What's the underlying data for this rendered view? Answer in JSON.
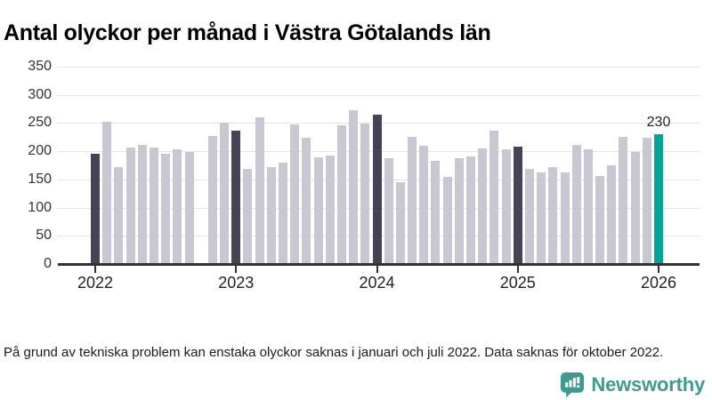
{
  "header": {
    "title": "Antal olyckor per månad i Västra Götalands län"
  },
  "footnote": "På grund av tekniska problem kan enstaka olyckor saknas i januari och juli 2022. Data saknas för oktober 2022.",
  "logo": {
    "text": "Newsworthy",
    "icon": "newsworthy-bubble-chart-icon",
    "color": "#3f9b8f"
  },
  "colors": {
    "bar_default": "#c9c8d2",
    "bar_january": "#454457",
    "bar_highlight": "#00a59a",
    "axis": "#333333",
    "gridline": "#e4e4e6"
  },
  "chart_data": {
    "type": "bar",
    "title": "Antal olyckor per månad i Västra Götalands län",
    "xlabel": "",
    "ylabel": "",
    "ylim": [
      0,
      350
    ],
    "yticks": [
      0,
      50,
      100,
      150,
      200,
      250,
      300,
      350
    ],
    "year_ticks": [
      "2022",
      "2023",
      "2024",
      "2025",
      "2026"
    ],
    "grid": true,
    "legend": false,
    "note": "October 2022 has no bar (data missing); January bars are dark; latest month highlighted teal with value label",
    "points": [
      {
        "month": "2022-01",
        "value": 195,
        "color": "dark"
      },
      {
        "month": "2022-02",
        "value": 253,
        "color": "light"
      },
      {
        "month": "2022-03",
        "value": 172,
        "color": "light"
      },
      {
        "month": "2022-04",
        "value": 207,
        "color": "light"
      },
      {
        "month": "2022-05",
        "value": 211,
        "color": "light"
      },
      {
        "month": "2022-06",
        "value": 206,
        "color": "light"
      },
      {
        "month": "2022-07",
        "value": 195,
        "color": "light"
      },
      {
        "month": "2022-08",
        "value": 204,
        "color": "light"
      },
      {
        "month": "2022-09",
        "value": 199,
        "color": "light"
      },
      {
        "month": "2022-10",
        "value": null,
        "color": "light"
      },
      {
        "month": "2022-11",
        "value": 227,
        "color": "light"
      },
      {
        "month": "2022-12",
        "value": 251,
        "color": "light"
      },
      {
        "month": "2023-01",
        "value": 237,
        "color": "dark"
      },
      {
        "month": "2023-02",
        "value": 168,
        "color": "light"
      },
      {
        "month": "2023-03",
        "value": 260,
        "color": "light"
      },
      {
        "month": "2023-04",
        "value": 172,
        "color": "light"
      },
      {
        "month": "2023-05",
        "value": 180,
        "color": "light"
      },
      {
        "month": "2023-06",
        "value": 248,
        "color": "light"
      },
      {
        "month": "2023-07",
        "value": 224,
        "color": "light"
      },
      {
        "month": "2023-08",
        "value": 189,
        "color": "light"
      },
      {
        "month": "2023-09",
        "value": 192,
        "color": "light"
      },
      {
        "month": "2023-10",
        "value": 246,
        "color": "light"
      },
      {
        "month": "2023-11",
        "value": 272,
        "color": "light"
      },
      {
        "month": "2023-12",
        "value": 249,
        "color": "light"
      },
      {
        "month": "2024-01",
        "value": 265,
        "color": "dark"
      },
      {
        "month": "2024-02",
        "value": 188,
        "color": "light"
      },
      {
        "month": "2024-03",
        "value": 145,
        "color": "light"
      },
      {
        "month": "2024-04",
        "value": 226,
        "color": "light"
      },
      {
        "month": "2024-05",
        "value": 210,
        "color": "light"
      },
      {
        "month": "2024-06",
        "value": 183,
        "color": "light"
      },
      {
        "month": "2024-07",
        "value": 154,
        "color": "light"
      },
      {
        "month": "2024-08",
        "value": 188,
        "color": "light"
      },
      {
        "month": "2024-09",
        "value": 191,
        "color": "light"
      },
      {
        "month": "2024-10",
        "value": 205,
        "color": "light"
      },
      {
        "month": "2024-11",
        "value": 236,
        "color": "light"
      },
      {
        "month": "2024-12",
        "value": 203,
        "color": "light"
      },
      {
        "month": "2025-01",
        "value": 208,
        "color": "dark"
      },
      {
        "month": "2025-02",
        "value": 168,
        "color": "light"
      },
      {
        "month": "2025-03",
        "value": 163,
        "color": "light"
      },
      {
        "month": "2025-04",
        "value": 172,
        "color": "light"
      },
      {
        "month": "2025-05",
        "value": 163,
        "color": "light"
      },
      {
        "month": "2025-06",
        "value": 212,
        "color": "light"
      },
      {
        "month": "2025-07",
        "value": 204,
        "color": "light"
      },
      {
        "month": "2025-08",
        "value": 156,
        "color": "light"
      },
      {
        "month": "2025-09",
        "value": 175,
        "color": "light"
      },
      {
        "month": "2025-10",
        "value": 225,
        "color": "light"
      },
      {
        "month": "2025-11",
        "value": 198,
        "color": "light"
      },
      {
        "month": "2025-12",
        "value": 224,
        "color": "light"
      },
      {
        "month": "2026-01",
        "value": 230,
        "color": "teal",
        "label": "230"
      }
    ]
  }
}
